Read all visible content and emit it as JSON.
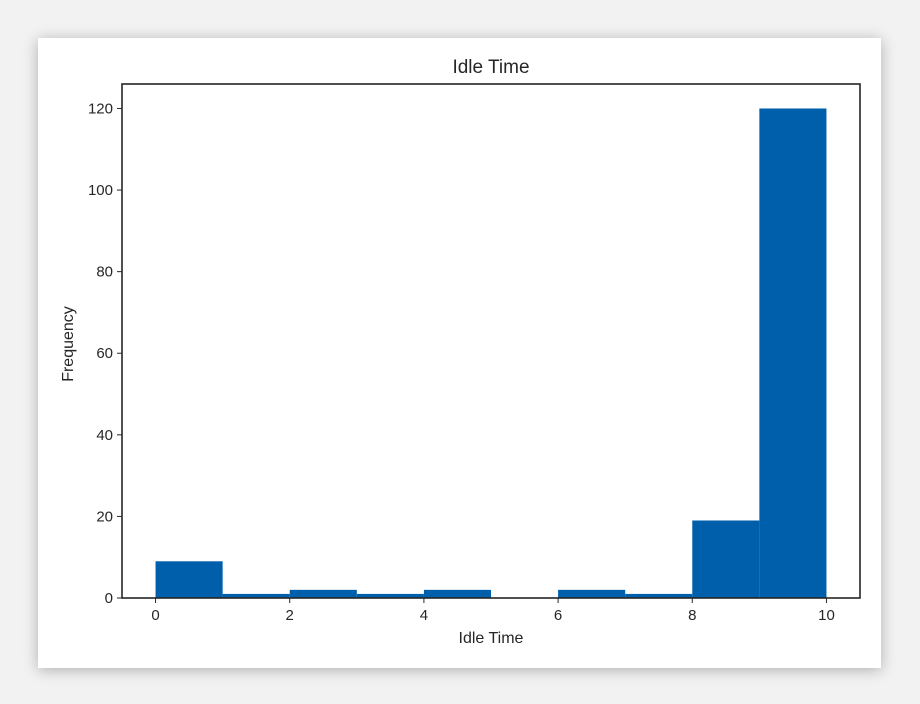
{
  "chart_data": {
    "type": "bar",
    "title": "Idle Time",
    "xlabel": "Idle Time",
    "ylabel": "Frequency",
    "bins": [
      {
        "x0": 0,
        "x1": 1,
        "value": 9
      },
      {
        "x0": 1,
        "x1": 2,
        "value": 1
      },
      {
        "x0": 2,
        "x1": 3,
        "value": 2
      },
      {
        "x0": 3,
        "x1": 4,
        "value": 1
      },
      {
        "x0": 4,
        "x1": 5,
        "value": 2
      },
      {
        "x0": 5,
        "x1": 6,
        "value": 0
      },
      {
        "x0": 6,
        "x1": 7,
        "value": 2
      },
      {
        "x0": 7,
        "x1": 8,
        "value": 1
      },
      {
        "x0": 8,
        "x1": 9,
        "value": 19
      },
      {
        "x0": 9,
        "x1": 10,
        "value": 120
      }
    ],
    "xlim": [
      -0.5,
      10.5
    ],
    "ylim": [
      0,
      126
    ],
    "xticks": [
      0,
      2,
      4,
      6,
      8,
      10
    ],
    "yticks": [
      0,
      20,
      40,
      60,
      80,
      100,
      120
    ],
    "bar_color": "#005fab",
    "grid": false,
    "legend": "none"
  }
}
